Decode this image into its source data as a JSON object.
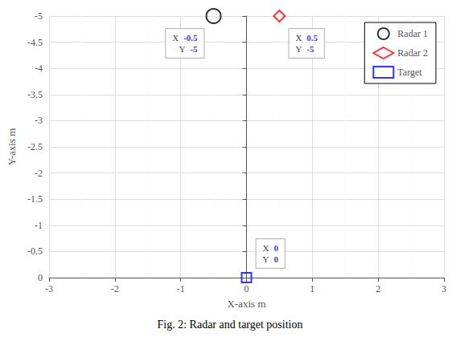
{
  "chart_data": {
    "type": "scatter",
    "title": "Fig. 2: Radar and target position",
    "xlabel": "X-axis m",
    "ylabel": "Y-axis m",
    "xlim": [
      -3,
      3
    ],
    "ylim": [
      0,
      -5
    ],
    "xticks": [
      -3,
      -2,
      -1,
      0,
      1,
      2,
      3
    ],
    "yticks": [
      0,
      -0.5,
      -1,
      -1.5,
      -2,
      -2.5,
      -3,
      -3.5,
      -4,
      -4.5,
      -5
    ],
    "grid": true,
    "legend": "upper right",
    "series": [
      {
        "name": "Radar 1",
        "color": "black",
        "marker": "circle",
        "x": [
          -0.5
        ],
        "y": [
          -5
        ]
      },
      {
        "name": "Radar 2",
        "color": "red",
        "marker": "diamond",
        "x": [
          0.5
        ],
        "y": [
          -5
        ]
      },
      {
        "name": "Target",
        "color": "blue",
        "marker": "square",
        "x": [
          0
        ],
        "y": [
          0
        ]
      }
    ],
    "annotations": [
      {
        "x": 0,
        "y": 0,
        "lines": [
          [
            "X",
            "0"
          ],
          [
            "Y",
            "0"
          ]
        ]
      },
      {
        "x": -0.5,
        "y": -5,
        "lines": [
          [
            "X",
            "-0.5"
          ],
          [
            "Y",
            "-5"
          ]
        ]
      },
      {
        "x": 0.5,
        "y": -5,
        "lines": [
          [
            "X",
            "0.5"
          ],
          [
            "Y",
            "-5"
          ]
        ]
      }
    ]
  }
}
